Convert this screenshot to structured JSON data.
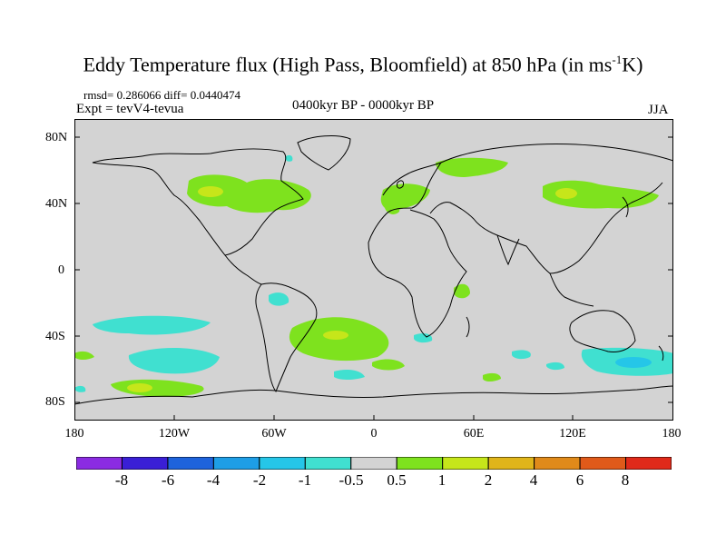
{
  "title_main": "Eddy Temperature flux (High Pass, Bloomfield) at 850 hPa (in ms",
  "title_sup": "-1",
  "title_end": "K)",
  "stats": "rmsd= 0.286066 diff= 0.0440474",
  "expt": "Expt = tevV4-tevua",
  "period": "0400kyr BP - 0000kyr BP",
  "season": "JJA",
  "lat_labels": [
    "80N",
    "40N",
    "0",
    "40S",
    "80S"
  ],
  "lon_labels": [
    "180",
    "120W",
    "60W",
    "0",
    "60E",
    "120E",
    "180"
  ],
  "colorbar": {
    "labels": [
      "-8",
      "-6",
      "-4",
      "-2",
      "-1",
      "-0.5",
      "0.5",
      "1",
      "2",
      "4",
      "6",
      "8"
    ],
    "colors": [
      "#8b2be2",
      "#3a1fd6",
      "#1e63dc",
      "#1e9ee6",
      "#25c6e8",
      "#40e0d0",
      "#d3d3d3",
      "#7ee21e",
      "#c6e61a",
      "#e0b51a",
      "#e08a1a",
      "#e05a1a",
      "#e02a1a"
    ]
  },
  "legend_colors": {
    "ocean_land": "#d3d3d3",
    "positive_1": "#7ee21e",
    "positive_2": "#c6e61a",
    "negative_05": "#40e0d0",
    "negative_1": "#25c6e8"
  }
}
